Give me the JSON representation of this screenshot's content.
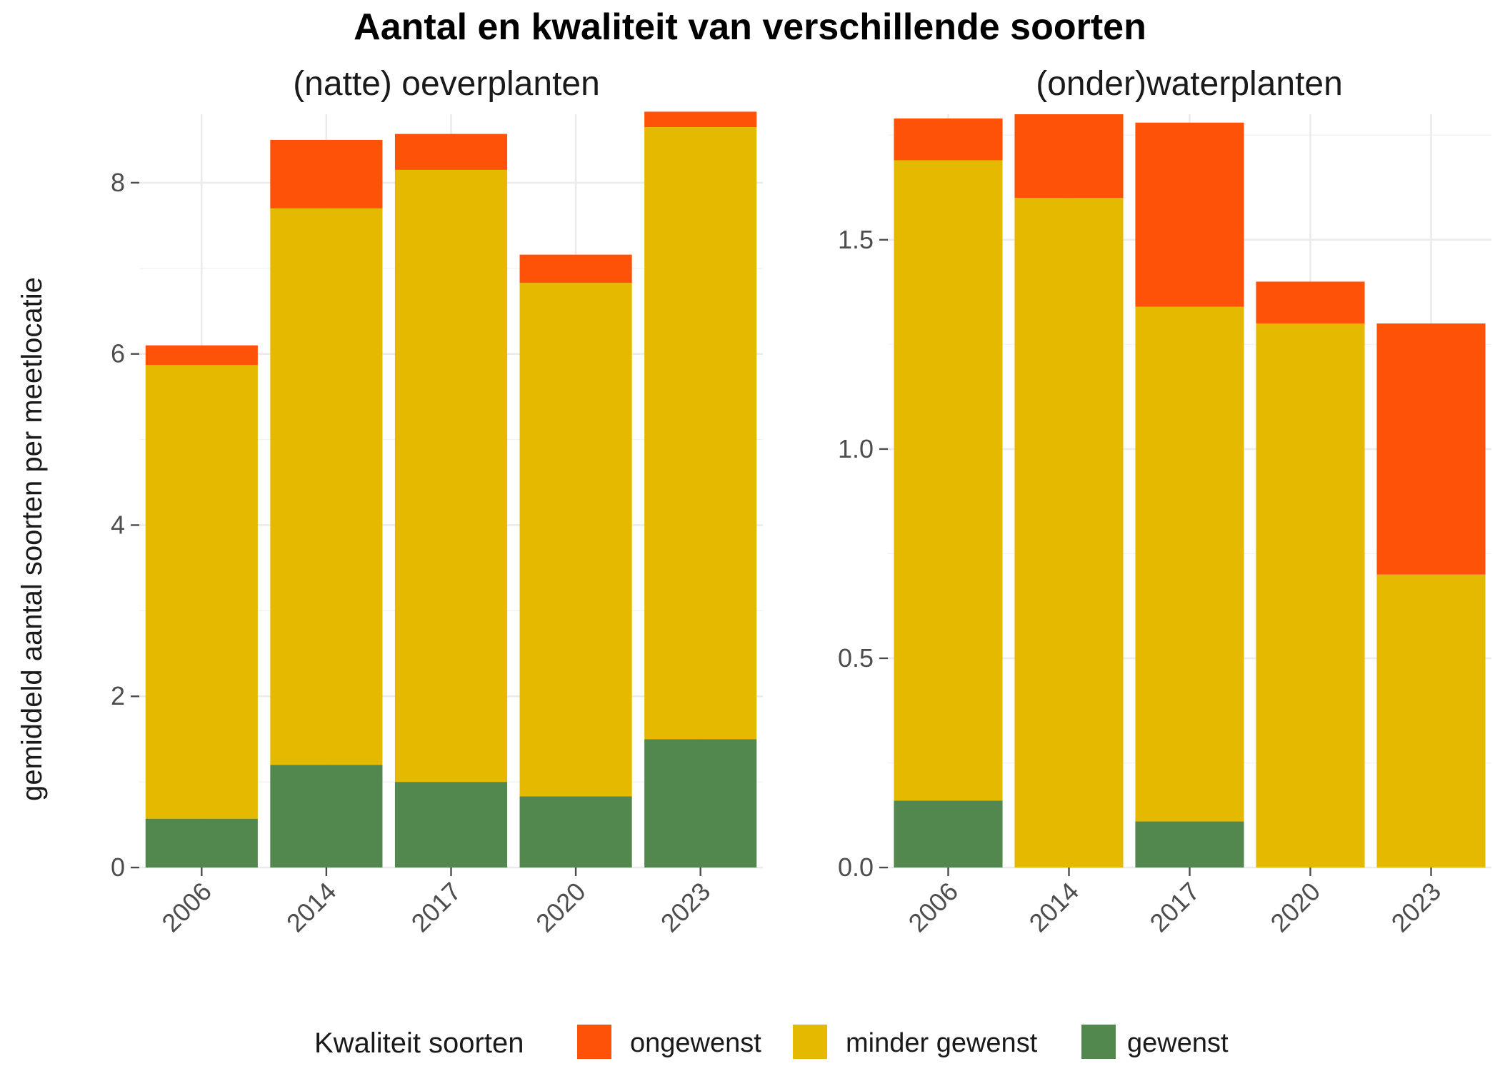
{
  "chart_data": {
    "type": "bar",
    "stacked": true,
    "title": "Aantal en kwaliteit van verschillende soorten",
    "ylabel": "gemiddeld aantal soorten per meetlocatie",
    "xlabel": "",
    "legend": {
      "title": "Kwaliteit soorten",
      "position": "bottom",
      "entries": [
        {
          "name": "ongewenst",
          "color": "#FF5209"
        },
        {
          "name": "minder gewenst",
          "color": "#E5B900"
        },
        {
          "name": "gewenst",
          "color": "#52884E"
        }
      ]
    },
    "grid": true,
    "panels": [
      {
        "subtitle": "(natte) oeverplanten",
        "categories": [
          "2006",
          "2014",
          "2017",
          "2020",
          "2023"
        ],
        "ylim": [
          0,
          8.8
        ],
        "yticks": [
          0,
          2,
          4,
          6,
          8
        ],
        "ytick_labels": [
          "0",
          "2",
          "4",
          "6",
          "8"
        ],
        "series": [
          {
            "name": "gewenst",
            "values": [
              0.57,
              1.2,
              1.0,
              0.83,
              1.5
            ]
          },
          {
            "name": "minder gewenst",
            "values": [
              5.3,
              6.5,
              7.15,
              6.0,
              7.15
            ]
          },
          {
            "name": "ongewenst",
            "values": [
              0.23,
              0.8,
              0.42,
              0.33,
              0.18
            ]
          }
        ]
      },
      {
        "subtitle": "(onder)waterplanten",
        "categories": [
          "2006",
          "2014",
          "2017",
          "2020",
          "2023"
        ],
        "ylim": [
          0,
          1.8
        ],
        "yticks": [
          0.0,
          0.5,
          1.0,
          1.5
        ],
        "ytick_labels": [
          "0.0",
          "0.5",
          "1.0",
          "1.5"
        ],
        "series": [
          {
            "name": "gewenst",
            "values": [
              0.16,
              0.0,
              0.11,
              0.0,
              0.0
            ]
          },
          {
            "name": "minder gewenst",
            "values": [
              1.53,
              1.6,
              1.23,
              1.3,
              0.7
            ]
          },
          {
            "name": "ongewenst",
            "values": [
              0.1,
              0.2,
              0.44,
              0.1,
              0.6
            ]
          }
        ]
      }
    ]
  }
}
